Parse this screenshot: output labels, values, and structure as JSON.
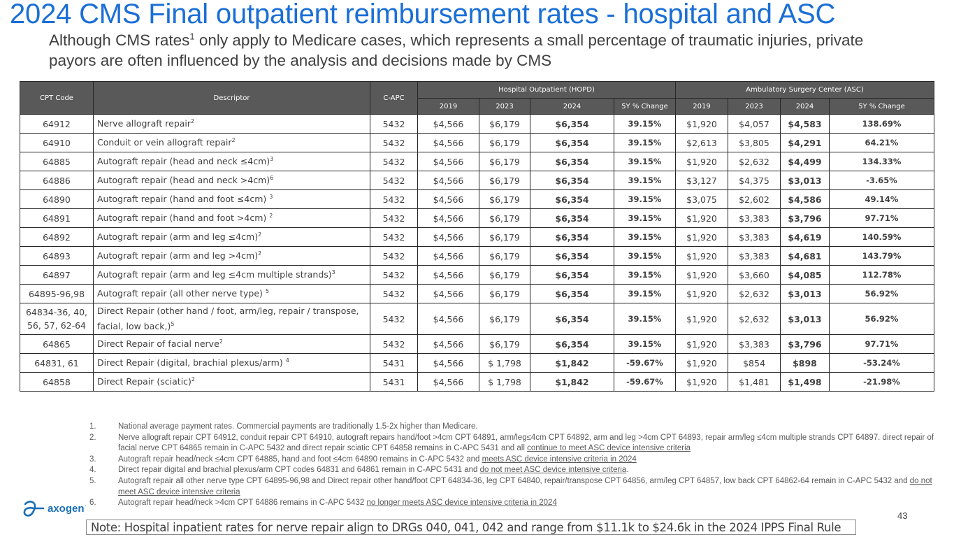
{
  "header": {
    "title": "2024 CMS Final outpatient reimbursement rates - hospital and ASC",
    "subtitle_part1": "Although CMS rates",
    "subtitle_sup": "1",
    "subtitle_part2": " only apply to Medicare cases, which represents a small percentage of traumatic injuries, private payors are often influenced by the analysis and decisions made by CMS"
  },
  "table": {
    "col_headers": {
      "cpt": "CPT Code",
      "descriptor": "Descriptor",
      "capc": "C-APC",
      "hopd_group": "Hospital Outpatient (HOPD)",
      "asc_group": "Ambulatory Surgery Center (ASC)",
      "sub": [
        "2019",
        "2023",
        "2024",
        "5Y % Change",
        "2019",
        "2023",
        "2024",
        "5Y % Change"
      ]
    },
    "rows": [
      {
        "cpt": "64912",
        "desc": "Nerve allograft repair",
        "sup": "2",
        "capc": "5432",
        "h2019": "$4,566",
        "h2023": "$6,179",
        "h2024": "$6,354",
        "hchg": "39.15%",
        "hneg": false,
        "a2019": "$1,920",
        "a2023": "$4,057",
        "a2024": "$4,583",
        "achg": "138.69%",
        "aneg": false
      },
      {
        "cpt": "64910",
        "desc": "Conduit or vein allograft repair",
        "sup": "2",
        "capc": "5432",
        "h2019": "$4,566",
        "h2023": "$6,179",
        "h2024": "$6,354",
        "hchg": "39.15%",
        "hneg": false,
        "a2019": "$2,613",
        "a2023": "$3,805",
        "a2024": "$4,291",
        "achg": "64.21%",
        "aneg": false
      },
      {
        "cpt": "64885",
        "desc": "Autograft repair (head and neck ≤4cm)",
        "sup": "3",
        "capc": "5432",
        "h2019": "$4,566",
        "h2023": "$6,179",
        "h2024": "$6,354",
        "hchg": "39.15%",
        "hneg": false,
        "a2019": "$1,920",
        "a2023": "$2,632",
        "a2024": "$4,499",
        "achg": "134.33%",
        "aneg": false
      },
      {
        "cpt": "64886",
        "desc": "Autograft repair (head and neck >4cm)",
        "sup": "6",
        "capc": "5432",
        "h2019": "$4,566",
        "h2023": "$6,179",
        "h2024": "$6,354",
        "hchg": "39.15%",
        "hneg": false,
        "a2019": "$3,127",
        "a2023": "$4,375",
        "a2024": "$3,013",
        "achg": "-3.65%",
        "aneg": true
      },
      {
        "cpt": "64890",
        "desc": "Autograft repair (hand and foot ≤4cm) ",
        "sup": "3",
        "capc": "5432",
        "h2019": "$4,566",
        "h2023": "$6,179",
        "h2024": "$6,354",
        "hchg": "39.15%",
        "hneg": false,
        "a2019": "$3,075",
        "a2023": "$2,602",
        "a2024": "$4,586",
        "achg": "49.14%",
        "aneg": false
      },
      {
        "cpt": "64891",
        "desc": "Autograft repair (hand and foot >4cm) ",
        "sup": "2",
        "capc": "5432",
        "h2019": "$4,566",
        "h2023": "$6,179",
        "h2024": "$6,354",
        "hchg": "39.15%",
        "hneg": false,
        "a2019": "$1,920",
        "a2023": "$3,383",
        "a2024": "$3,796",
        "achg": "97.71%",
        "aneg": false
      },
      {
        "cpt": "64892",
        "desc": "Autograft repair (arm and leg ≤4cm)",
        "sup": "2",
        "capc": "5432",
        "h2019": "$4,566",
        "h2023": "$6,179",
        "h2024": "$6,354",
        "hchg": "39.15%",
        "hneg": false,
        "a2019": "$1,920",
        "a2023": "$3,383",
        "a2024": "$4,619",
        "achg": "140.59%",
        "aneg": false
      },
      {
        "cpt": "64893",
        "desc": "Autograft repair (arm and leg >4cm)",
        "sup": "2",
        "capc": "5432",
        "h2019": "$4,566",
        "h2023": "$6,179",
        "h2024": "$6,354",
        "hchg": "39.15%",
        "hneg": false,
        "a2019": "$1,920",
        "a2023": "$3,383",
        "a2024": "$4,681",
        "achg": "143.79%",
        "aneg": false
      },
      {
        "cpt": "64897",
        "desc": "Autograft repair (arm and leg ≤4cm multiple strands)",
        "sup": "3",
        "capc": "5432",
        "h2019": "$4,566",
        "h2023": "$6,179",
        "h2024": "$6,354",
        "hchg": "39.15%",
        "hneg": false,
        "a2019": "$1,920",
        "a2023": "$3,660",
        "a2024": "$4,085",
        "achg": "112.78%",
        "aneg": false
      },
      {
        "cpt": "64895-96,98",
        "desc": "Autograft repair (all other nerve type) ",
        "sup": "5",
        "capc": "5432",
        "h2019": "$4,566",
        "h2023": "$6,179",
        "h2024": "$6,354",
        "hchg": "39.15%",
        "hneg": false,
        "a2019": "$1,920",
        "a2023": "$2,632",
        "a2024": "$3,013",
        "achg": "56.92%",
        "aneg": false
      },
      {
        "cpt": "64834-36, 40, 56, 57, 62-64",
        "desc": "Direct Repair (other hand / foot,  arm/leg, repair / transpose, facial, low back,)",
        "sup": "5",
        "capc": "5432",
        "h2019": "$4,566",
        "h2023": "$6,179",
        "h2024": "$6,354",
        "hchg": "39.15%",
        "hneg": false,
        "a2019": "$1,920",
        "a2023": "$2,632",
        "a2024": "$3,013",
        "achg": "56.92%",
        "aneg": false,
        "tall": true
      },
      {
        "cpt": "64865",
        "desc": "Direct Repair of facial nerve",
        "sup": "2",
        "capc": "5432",
        "h2019": "$4,566",
        "h2023": "$6,179",
        "h2024": "$6,354",
        "hchg": "39.15%",
        "hneg": false,
        "a2019": "$1,920",
        "a2023": "$3,383",
        "a2024": "$3,796",
        "achg": "97.71%",
        "aneg": false
      },
      {
        "cpt": "64831, 61",
        "desc": "Direct Repair (digital, brachial plexus/arm) ",
        "sup": "4",
        "capc": "5431",
        "h2019": "$4,566",
        "h2023": "$ 1,798",
        "h2024": "$1,842",
        "hchg": "-59.67%",
        "hneg": true,
        "a2019": "$1,920",
        "a2023": "$854",
        "a2024": "$898",
        "achg": "-53.24%",
        "aneg": true
      },
      {
        "cpt": "64858",
        "desc": "Direct Repair (sciatic)",
        "sup": "2",
        "capc": "5431",
        "h2019": "$4,566",
        "h2023": "$ 1,798",
        "h2024": "$1,842",
        "hchg": "-59.67%",
        "hneg": true,
        "a2019": "$1,920",
        "a2023": "$1,481",
        "a2024": "$1,498",
        "achg": "-21.98%",
        "aneg": true
      }
    ]
  },
  "footnotes": [
    {
      "num": "1.",
      "parts": [
        {
          "t": "National average payment rates. Commercial payments are traditionally 1.5-2x higher than Medicare.",
          "u": false
        }
      ]
    },
    {
      "num": "2.",
      "parts": [
        {
          "t": "Nerve allograft repair CPT 64912, conduit repair CPT 64910, autograft repairs hand/foot >4cm CPT 64891, arm/leg≤4cm CPT 64892, arm and leg >4cm CPT 64893, repair arm/leg ≤4cm multiple strands CPT 64897. direct repair of facial nerve CPT 64865 remain in C-APC 5432 and direct repair sciatic CPT 64858 remains in C-APC 5431 and all ",
          "u": false
        },
        {
          "t": "continue to meet ASC device intensive criteria",
          "u": true
        }
      ]
    },
    {
      "num": "3.",
      "parts": [
        {
          "t": "Autograft repair head/neck ≤4cm CPT 64885, hand and foot ≤4cm 64890 remains in C-APC 5432 and ",
          "u": false
        },
        {
          "t": "meets ASC device intensive criteria in 2024",
          "u": true
        }
      ]
    },
    {
      "num": "4.",
      "parts": [
        {
          "t": "Direct repair digital and brachial plexus/arm CPT codes 64831 and 64861 remain in C-APC 5431 and ",
          "u": false
        },
        {
          "t": "do not meet ASC device intensive criteria",
          "u": true
        },
        {
          "t": ".",
          "u": false
        }
      ]
    },
    {
      "num": "5.",
      "parts": [
        {
          "t": "Autograft repair all other nerve type CPT 64895-96,98 and Direct repair other hand/foot CPT 64834-36, leg CPT 64840, repair/transpose CPT 64856, arm/leg CPT 64857, low back CPT 64862-64 remain in C-APC 5432 and ",
          "u": false
        },
        {
          "t": "do not meet ASC device intensive criteria",
          "u": true
        }
      ]
    },
    {
      "num": "6.",
      "parts": [
        {
          "t": "Autograft repair head/neck >4cm CPT 64886 remains in C-APC 5432 ",
          "u": false
        },
        {
          "t": "no longer meets ASC device intensive criteria in 2024",
          "u": true
        }
      ]
    }
  ],
  "logo": {
    "text": "axogen",
    "mark": "·",
    "icon": "axogen-logo-icon"
  },
  "note": "Note: Hospital inpatient rates for nerve repair align to DRGs 040, 041, 042 and range from $11.1k to $24.6k in the 2024 IPPS Final Rule",
  "page_number": "43",
  "colors": {
    "title": "#1a6fd6",
    "positive": "#1a6fd6",
    "negative": "#e0151b",
    "header_bg": "#595959",
    "logo": "#1a6fb5"
  }
}
